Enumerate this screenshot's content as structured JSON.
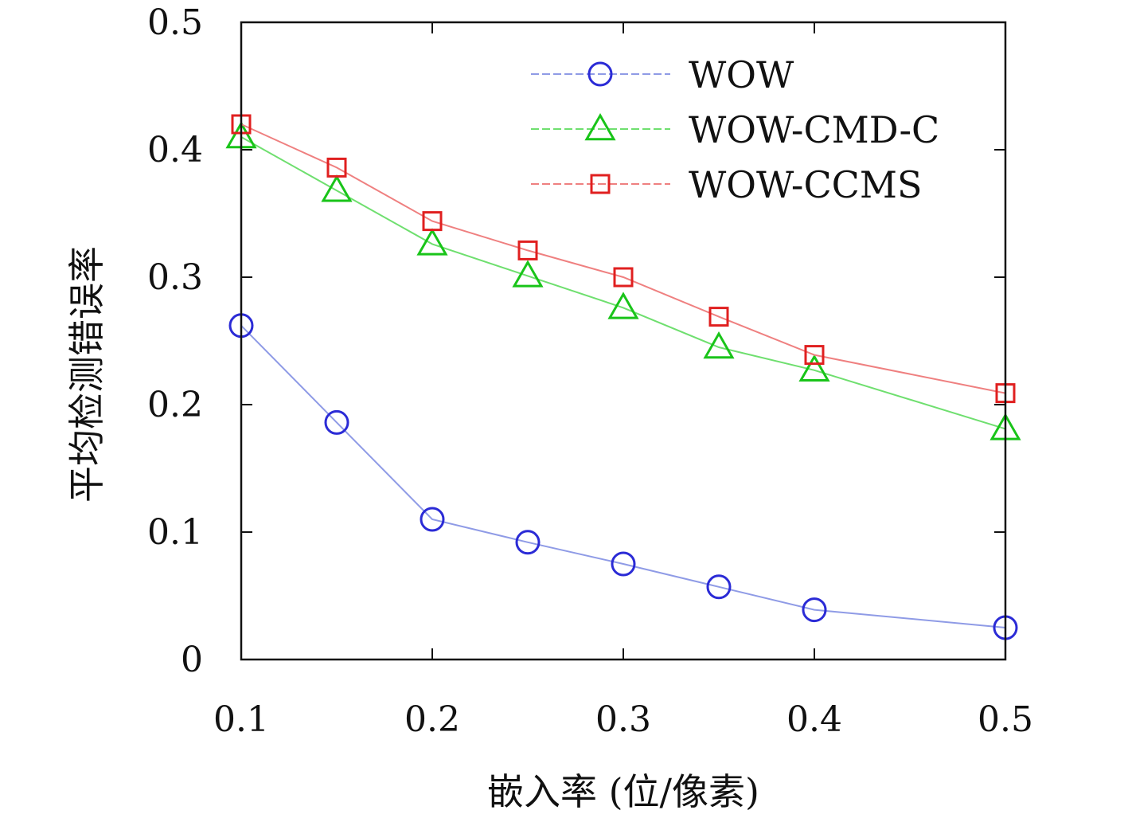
{
  "chart_data": {
    "type": "line",
    "xlabel": "嵌入率 (位/像素)",
    "ylabel": "平均检测错误率",
    "xlim": [
      0.1,
      0.5
    ],
    "ylim": [
      0,
      0.5
    ],
    "xticks": [
      "0.1",
      "0.2",
      "0.3",
      "0.4",
      "0.5"
    ],
    "yticks": [
      "0",
      "0.1",
      "0.2",
      "0.3",
      "0.4",
      "0.5"
    ],
    "grid": false,
    "legend_position": "top-right",
    "x": [
      0.1,
      0.15,
      0.2,
      0.25,
      0.3,
      0.35,
      0.4,
      0.5
    ],
    "series": [
      {
        "name": "WOW",
        "color": "#2b2bd6",
        "line_color": "#8f9be6",
        "marker": "circle",
        "values": [
          0.262,
          0.186,
          0.11,
          0.092,
          0.075,
          0.057,
          0.039,
          0.025
        ]
      },
      {
        "name": "WOW-CMD-C",
        "color": "#19c419",
        "line_color": "#6fdf6f",
        "marker": "triangle",
        "values": [
          0.41,
          0.368,
          0.326,
          0.301,
          0.276,
          0.245,
          0.227,
          0.181
        ]
      },
      {
        "name": "WOW-CCMS",
        "color": "#e02020",
        "line_color": "#ef8080",
        "marker": "square",
        "values": [
          0.42,
          0.386,
          0.344,
          0.321,
          0.3,
          0.269,
          0.239,
          0.209
        ]
      }
    ]
  }
}
